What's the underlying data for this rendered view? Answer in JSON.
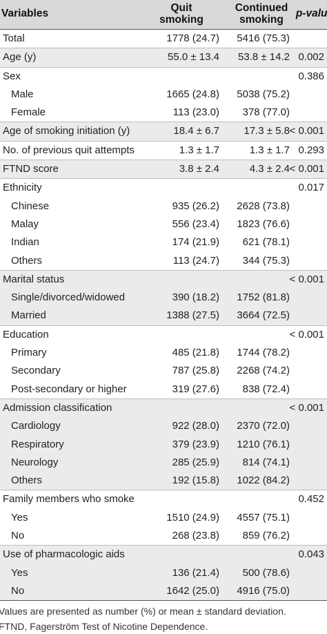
{
  "header": {
    "variables": "Variables",
    "quit_line1": "Quit",
    "quit_line2": "smoking",
    "cont_line1": "Continued",
    "cont_line2": "smoking",
    "p_value": "p-value"
  },
  "rows": [
    {
      "label": "Total",
      "quit": "1778 (24.7)",
      "cont": "5416 (75.3)",
      "p": ""
    },
    {
      "label": "Age (y)",
      "quit": "55.0 ± 13.4",
      "cont": "53.8 ± 14.2",
      "p": "0.002"
    },
    {
      "label": "Sex",
      "quit": "",
      "cont": "",
      "p": "0.386"
    },
    {
      "label": "Male",
      "quit": "1665 (24.8)",
      "cont": "5038 (75.2)",
      "p": ""
    },
    {
      "label": "Female",
      "quit": "113 (23.0)",
      "cont": "378 (77.0)",
      "p": ""
    },
    {
      "label": "Age of smoking initiation (y)",
      "quit": "18.4 ± 6.7",
      "cont": "17.3 ± 5.8",
      "p": "< 0.001"
    },
    {
      "label": "No. of previous quit attempts",
      "quit": "1.3 ± 1.7",
      "cont": "1.3 ± 1.7",
      "p": "0.293"
    },
    {
      "label": "FTND score",
      "quit": "3.8 ± 2.4",
      "cont": "4.3 ± 2.4",
      "p": "< 0.001"
    },
    {
      "label": "Ethnicity",
      "quit": "",
      "cont": "",
      "p": "0.017"
    },
    {
      "label": "Chinese",
      "quit": "935 (26.2)",
      "cont": "2628 (73.8)",
      "p": ""
    },
    {
      "label": "Malay",
      "quit": "556 (23.4)",
      "cont": "1823 (76.6)",
      "p": ""
    },
    {
      "label": "Indian",
      "quit": "174 (21.9)",
      "cont": "621 (78.1)",
      "p": ""
    },
    {
      "label": "Others",
      "quit": "113 (24.7)",
      "cont": "344 (75.3)",
      "p": ""
    },
    {
      "label": "Marital status",
      "quit": "",
      "cont": "",
      "p": "< 0.001"
    },
    {
      "label": "Single/divorced/widowed",
      "quit": "390 (18.2)",
      "cont": "1752 (81.8)",
      "p": ""
    },
    {
      "label": "Married",
      "quit": "1388 (27.5)",
      "cont": "3664 (72.5)",
      "p": ""
    },
    {
      "label": "Education",
      "quit": "",
      "cont": "",
      "p": "< 0.001"
    },
    {
      "label": "Primary",
      "quit": "485 (21.8)",
      "cont": "1744 (78.2)",
      "p": ""
    },
    {
      "label": "Secondary",
      "quit": "787 (25.8)",
      "cont": "2268 (74.2)",
      "p": ""
    },
    {
      "label": "Post-secondary or higher",
      "quit": "319 (27.6)",
      "cont": "838 (72.4)",
      "p": ""
    },
    {
      "label": "Admission classification",
      "quit": "",
      "cont": "",
      "p": "< 0.001"
    },
    {
      "label": "Cardiology",
      "quit": "922 (28.0)",
      "cont": "2370 (72.0)",
      "p": ""
    },
    {
      "label": "Respiratory",
      "quit": "379 (23.9)",
      "cont": "1210 (76.1)",
      "p": ""
    },
    {
      "label": "Neurology",
      "quit": "285 (25.9)",
      "cont": "814 (74.1)",
      "p": ""
    },
    {
      "label": "Others",
      "quit": "192 (15.8)",
      "cont": "1022 (84.2)",
      "p": ""
    },
    {
      "label": "Family members who smoke",
      "quit": "",
      "cont": "",
      "p": "0.452"
    },
    {
      "label": "Yes",
      "quit": "1510 (24.9)",
      "cont": "4557 (75.1)",
      "p": ""
    },
    {
      "label": "No",
      "quit": "268 (23.8)",
      "cont": "859 (76.2)",
      "p": ""
    },
    {
      "label": "Use of pharmacologic aids",
      "quit": "",
      "cont": "",
      "p": "0.043"
    },
    {
      "label": "Yes",
      "quit": "136 (21.4)",
      "cont": "500 (78.6)",
      "p": ""
    },
    {
      "label": "No",
      "quit": "1642 (25.0)",
      "cont": "4916 (75.0)",
      "p": ""
    }
  ],
  "footnotes": {
    "line1": "Values are presented as number (%) or mean ± standard deviation.",
    "line2": "FTND, Fagerström Test of Nicotine Dependence."
  }
}
